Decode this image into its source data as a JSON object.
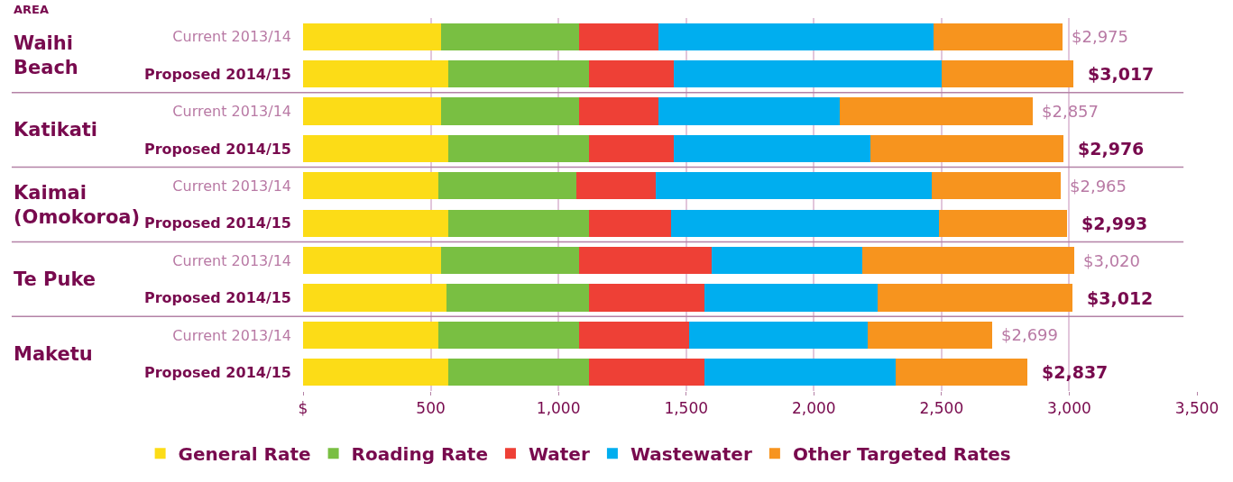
{
  "chart_data": {
    "type": "bar",
    "orientation": "horizontal",
    "stacked": true,
    "categories": [
      "Current 2013/14",
      "Proposed 2014/15",
      "Current 2013/14",
      "Proposed 2014/15",
      "Current 2013/14",
      "Proposed 2014/15",
      "Current 2013/14",
      "Proposed 2014/15",
      "Current 2013/14",
      "Proposed 2014/15"
    ],
    "series": [
      {
        "name": "General Rate",
        "color": "#fcdc17",
        "values": [
          540,
          570,
          540,
          570,
          530,
          570,
          540,
          560,
          530,
          570
        ]
      },
      {
        "name": "Roading Rate",
        "color": "#79bf42",
        "values": [
          540,
          550,
          540,
          550,
          540,
          550,
          540,
          560,
          550,
          550
        ]
      },
      {
        "name": "Water",
        "color": "#ee4036",
        "values": [
          310,
          330,
          310,
          330,
          310,
          320,
          520,
          450,
          430,
          450
        ]
      },
      {
        "name": "Wastewater",
        "color": "#00aeef",
        "values": [
          1080,
          1050,
          710,
          770,
          1080,
          1050,
          590,
          680,
          700,
          750
        ]
      },
      {
        "name": "Other Targeted Rates",
        "color": "#f7941e",
        "values": [
          505,
          517,
          757,
          756,
          505,
          503,
          830,
          762,
          489,
          517
        ]
      }
    ],
    "totals": [
      "$2,975",
      "$3,017",
      "$2,857",
      "$2,976",
      "$2,965",
      "$2,993",
      "$3,020",
      "$3,012",
      "$2,699",
      "$2,837"
    ],
    "annotations": [
      "AREA",
      "Waihi Beach",
      "Katikati",
      "Kaimai (Omokoroa)",
      "Te Puke",
      "Maketu"
    ],
    "xlim": [
      0,
      3500
    ],
    "xticks": [
      {
        "value": 0,
        "label": "$"
      },
      500,
      {
        "value": 1000,
        "label": "1,000"
      },
      {
        "value": 1500,
        "label": "1,500"
      },
      {
        "value": 2000,
        "label": "2,000"
      },
      {
        "value": 2500,
        "label": "2,500"
      },
      {
        "value": 3000,
        "label": "3,000"
      },
      {
        "value": 3500,
        "label": "3,500"
      }
    ],
    "grid": "x",
    "legend": "bottom"
  }
}
